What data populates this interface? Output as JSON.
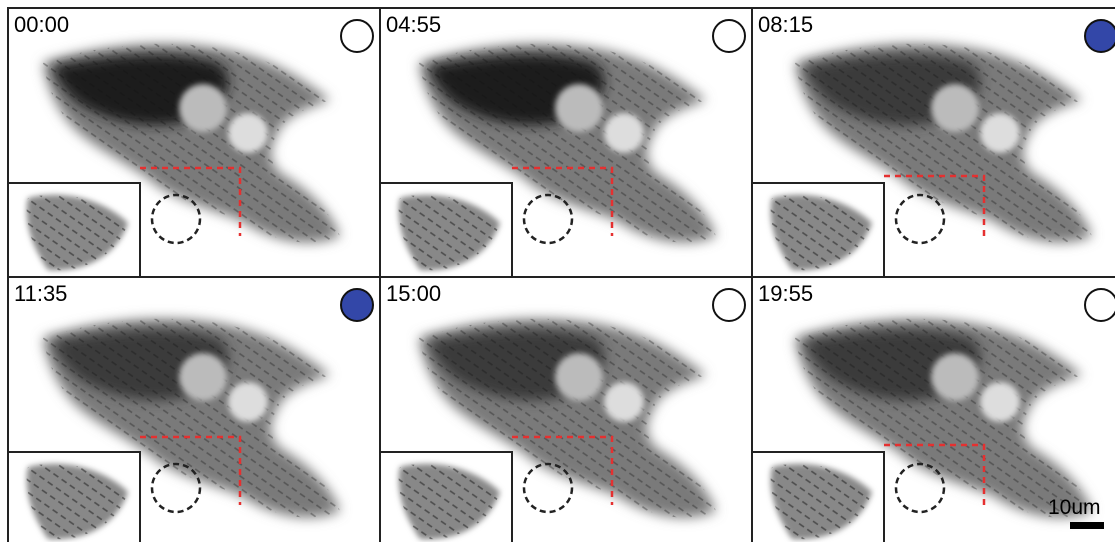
{
  "panels": [
    {
      "time": "00:00",
      "marker": "open"
    },
    {
      "time": "04:55",
      "marker": "open"
    },
    {
      "time": "08:15",
      "marker": "filled"
    },
    {
      "time": "11:35",
      "marker": "filled"
    },
    {
      "time": "15:00",
      "marker": "open"
    },
    {
      "time": "19:55",
      "marker": "open"
    }
  ],
  "marker_color": "#3347a8",
  "scale_bar": {
    "label": "10um"
  }
}
